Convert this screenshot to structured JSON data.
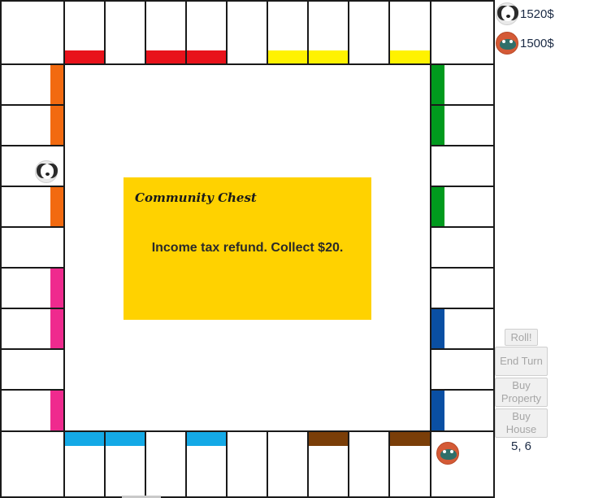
{
  "board": {
    "colors": {
      "red": "#e8121b",
      "yellow": "#fff200",
      "green": "#009a1d",
      "orange": "#f26a10",
      "pink": "#ef2a8e",
      "blue": "#0a4fa3",
      "light_blue": "#14a9e6",
      "brown": "#7a3e08"
    }
  },
  "card": {
    "title": "Community Chest",
    "text": "Income tax refund. Collect $20.",
    "color": "#ffd200"
  },
  "players": [
    {
      "token": "dog-token-icon",
      "money": "1520$"
    },
    {
      "token": "frog-token-icon",
      "money": "1500$"
    }
  ],
  "buttons": {
    "roll": "Roll!",
    "end_turn": "End Turn",
    "buy_property": "Buy Property",
    "buy_house": "Buy House"
  },
  "dice": "5, 6"
}
